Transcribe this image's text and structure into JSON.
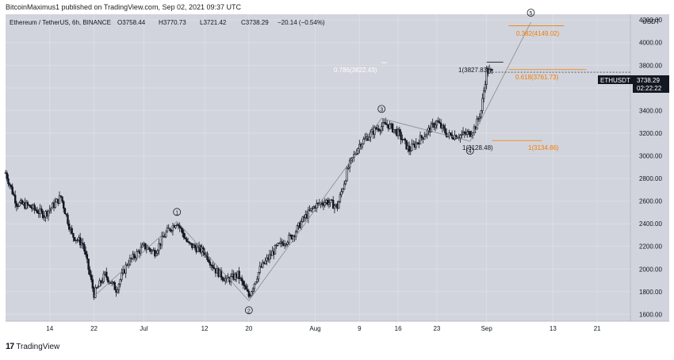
{
  "byline": "BitcoinMaximus1 published on TradingView.com, Sep 02, 2021 09:37 UTC",
  "brand": {
    "logo_icon": "tradingview-logo-icon",
    "name": "TradingView"
  },
  "header": {
    "symbol_line": "Ethereum / TetherUS, 6h, BINANCE",
    "open": "O3758.44",
    "high": "H3770.73",
    "low": "L3721.42",
    "close": "C3738.29",
    "change": "−20.14 (−0.54%)"
  },
  "colors": {
    "background": "#d1d4dc",
    "candle": "#131722",
    "grid": "#dcdee5",
    "fib_orange": "#f57c00",
    "wave_line": "#8a8a8a",
    "text": "#131722",
    "price_tag": "#131722"
  },
  "price_tag": {
    "symbol": "ETHUSDT",
    "price": "3738.29",
    "countdown": "02:22:22"
  },
  "annotations": {
    "fib_0786": "0.786(3822.43)",
    "fib_1_top": "1(3827.83)",
    "fib_0382": "0.382(4149.02)",
    "fib_0618": "0.618(3761.73)",
    "fib_1_low": "1(3134.86)",
    "low_label": "1(3128.48)"
  },
  "chart_data": {
    "type": "candlestick",
    "title": "",
    "y_axis_unit": "USDT",
    "y_ticks": [
      1600,
      1800,
      2000,
      2200,
      2400,
      2600,
      2800,
      3000,
      3200,
      3400,
      3600,
      3800,
      4000,
      4200
    ],
    "y_tick_labels": [
      "1600.00",
      "1800.00",
      "2000.00",
      "2200.00",
      "2400.00",
      "2600.00",
      "2800.00",
      "3000.00",
      "3200.00",
      "3400.00",
      "3600.00",
      "3800.00",
      "4000.00",
      "4200.00"
    ],
    "ylim": [
      1540,
      4250
    ],
    "x_tick_labels": [
      "14",
      "22",
      "Jul",
      "12",
      "20",
      "Aug",
      "9",
      "16",
      "23",
      "Sep",
      "13",
      "21"
    ],
    "x_tick_dates": [
      "2021-06-14",
      "2021-06-22",
      "2021-07-01",
      "2021-07-12",
      "2021-07-20",
      "2021-08-01",
      "2021-08-09",
      "2021-08-16",
      "2021-08-23",
      "2021-09-01",
      "2021-09-13",
      "2021-09-21"
    ],
    "xlim_dates": [
      "2021-06-06",
      "2021-09-27"
    ],
    "grid": true,
    "price_path": [
      [
        "2021-06-06",
        2850
      ],
      [
        "2021-06-08",
        2580
      ],
      [
        "2021-06-10",
        2560
      ],
      [
        "2021-06-13",
        2480
      ],
      [
        "2021-06-15",
        2580
      ],
      [
        "2021-06-16",
        2640
      ],
      [
        "2021-06-18",
        2300
      ],
      [
        "2021-06-20",
        2220
      ],
      [
        "2021-06-22",
        1780
      ],
      [
        "2021-06-24",
        1950
      ],
      [
        "2021-06-26",
        1820
      ],
      [
        "2021-06-28",
        2050
      ],
      [
        "2021-07-01",
        2200
      ],
      [
        "2021-07-03",
        2150
      ],
      [
        "2021-07-05",
        2320
      ],
      [
        "2021-07-07",
        2420
      ],
      [
        "2021-07-09",
        2220
      ],
      [
        "2021-07-12",
        2150
      ],
      [
        "2021-07-14",
        1990
      ],
      [
        "2021-07-16",
        1900
      ],
      [
        "2021-07-18",
        1950
      ],
      [
        "2021-07-20",
        1760
      ],
      [
        "2021-07-22",
        2000
      ],
      [
        "2021-07-25",
        2190
      ],
      [
        "2021-07-28",
        2300
      ],
      [
        "2021-07-30",
        2450
      ],
      [
        "2021-08-01",
        2560
      ],
      [
        "2021-08-03",
        2600
      ],
      [
        "2021-08-05",
        2550
      ],
      [
        "2021-08-07",
        2900
      ],
      [
        "2021-08-09",
        3100
      ],
      [
        "2021-08-12",
        3240
      ],
      [
        "2021-08-14",
        3280
      ],
      [
        "2021-08-16",
        3200
      ],
      [
        "2021-08-18",
        3050
      ],
      [
        "2021-08-20",
        3150
      ],
      [
        "2021-08-23",
        3300
      ],
      [
        "2021-08-25",
        3180
      ],
      [
        "2021-08-27",
        3180
      ],
      [
        "2021-08-29",
        3200
      ],
      [
        "2021-08-30",
        3260
      ],
      [
        "2021-08-31",
        3400
      ],
      [
        "2021-09-01",
        3750
      ],
      [
        "2021-09-02",
        3738.29
      ]
    ],
    "elliott_waves": [
      {
        "label": "1",
        "date": "2021-07-07",
        "price": 2420
      },
      {
        "label": "2",
        "date": "2021-07-20",
        "price": 1720
      },
      {
        "label": "3",
        "date": "2021-08-13",
        "price": 3330
      },
      {
        "label": "4",
        "date": "2021-08-29",
        "price": 3128.48
      },
      {
        "label": "5",
        "date": "2021-09-09",
        "price": 4180
      }
    ],
    "fib_levels": [
      {
        "label": "0.382(4149.02)",
        "price": 4149.02,
        "color": "orange"
      },
      {
        "label": "0.618(3761.73)",
        "price": 3761.73,
        "color": "orange"
      },
      {
        "label": "1(3134.86)",
        "price": 3134.86,
        "color": "orange"
      },
      {
        "label": "1(3827.83)",
        "price": 3827.83,
        "color": "black"
      },
      {
        "label": "0.786(3822.43)",
        "price": 3822.43,
        "color": "white"
      }
    ],
    "last_price": 3738.29
  }
}
